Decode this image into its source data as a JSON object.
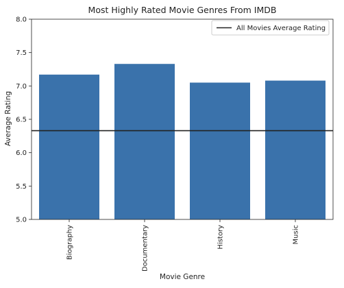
{
  "chart_data": {
    "type": "bar",
    "title": "Most Highly Rated Movie Genres From IMDB",
    "xlabel": "Movie Genre",
    "ylabel": "Average Rating",
    "categories": [
      "Biography",
      "Documentary",
      "History",
      "Music"
    ],
    "values": [
      7.17,
      7.33,
      7.05,
      7.08
    ],
    "ylim": [
      5.0,
      8.0
    ],
    "yticks": [
      "5.0",
      "5.5",
      "6.0",
      "6.5",
      "7.0",
      "7.5",
      "8.0"
    ],
    "reference_line": {
      "label": "All Movies Average Rating",
      "value": 6.33
    },
    "legend_position": "top-right",
    "grid": false,
    "bar_color": "#3a72ab",
    "line_color": "#222222"
  }
}
